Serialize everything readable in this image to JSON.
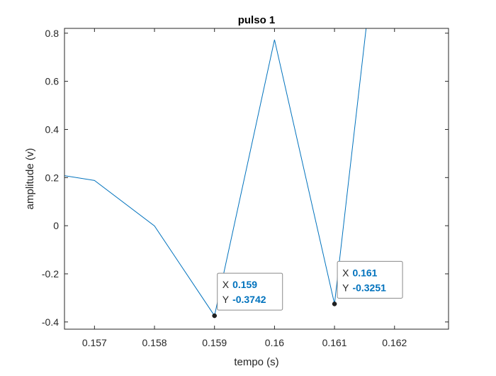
{
  "chart_data": {
    "type": "line",
    "title": "pulso 1",
    "xlabel": "tempo (s)",
    "ylabel": "amplitude (v)",
    "xlim": [
      0.1565,
      0.1629
    ],
    "ylim": [
      -0.43,
      0.82
    ],
    "x_ticks": [
      0.157,
      0.158,
      0.159,
      0.16,
      0.161,
      0.162
    ],
    "x_tick_labels": [
      "0.157",
      "0.158",
      "0.159",
      "0.16",
      "0.161",
      "0.162"
    ],
    "y_ticks": [
      -0.4,
      -0.2,
      0,
      0.2,
      0.4,
      0.6,
      0.8
    ],
    "y_tick_labels": [
      "-0.4",
      "-0.2",
      "0",
      "0.2",
      "0.4",
      "0.6",
      "0.8"
    ],
    "grid": false,
    "series": [
      {
        "x": [
          0.1564,
          0.157,
          0.158,
          0.159,
          0.16,
          0.161,
          0.162
        ],
        "y": [
          0.212,
          0.188,
          -0.001,
          -0.3742,
          0.773,
          -0.3251,
          1.85
        ],
        "color": "#0072BD"
      }
    ],
    "datatips": [
      {
        "x_label": "X",
        "y_label": "Y",
        "x_value": "0.159",
        "y_value": "-0.3742",
        "x": 0.159,
        "y": -0.3742
      },
      {
        "x_label": "X",
        "y_label": "Y",
        "x_value": "0.161",
        "y_value": "-0.3251",
        "x": 0.161,
        "y": -0.3251
      }
    ]
  },
  "colors": {
    "line": "#0072BD",
    "datatip_value": "#0072BD",
    "axes": "#262626",
    "text": "#262626"
  }
}
